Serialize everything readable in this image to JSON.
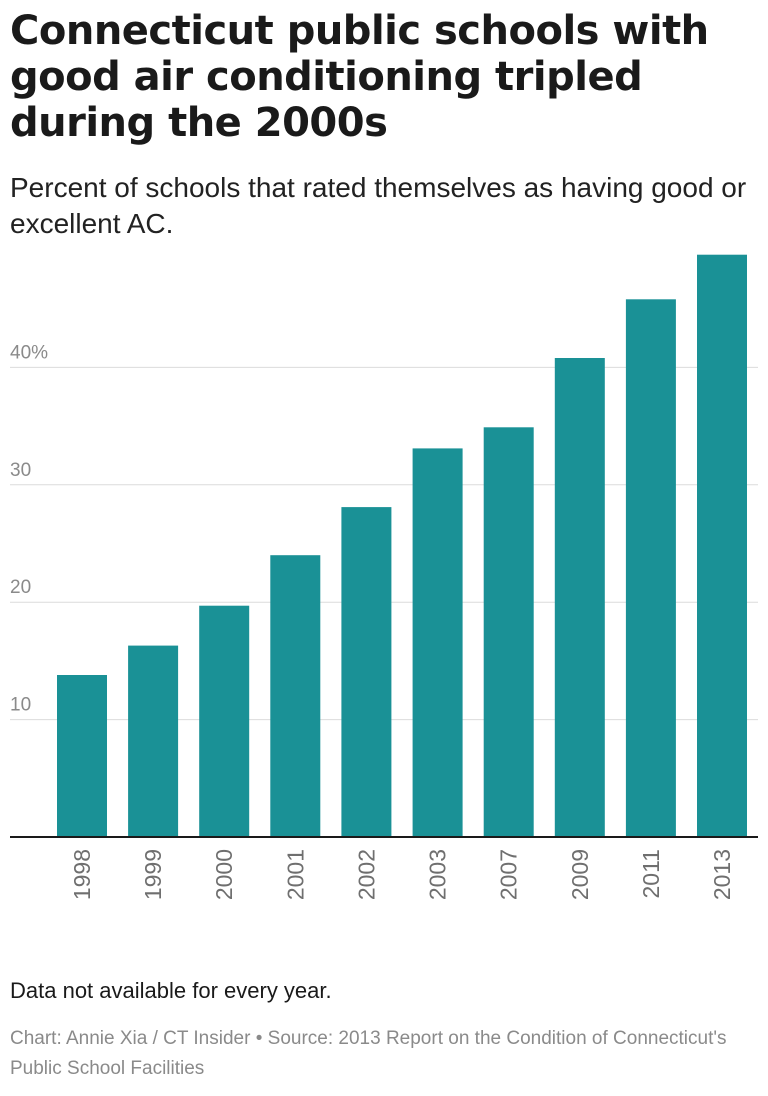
{
  "chart_data": {
    "type": "bar",
    "title": "Connecticut public schools with good air conditioning tripled during the 2000s",
    "subtitle": "Percent of schools that rated themselves as having good or excellent AC.",
    "xlabel": "",
    "ylabel": "",
    "categories": [
      "1998",
      "1999",
      "2000",
      "2001",
      "2002",
      "2003",
      "2007",
      "2009",
      "2011",
      "2013"
    ],
    "values": [
      13.8,
      16.3,
      19.7,
      24.0,
      28.1,
      33.1,
      34.9,
      40.8,
      45.8,
      49.6
    ],
    "ylim": [
      0,
      50
    ],
    "yticks": [
      10,
      20,
      30,
      40
    ],
    "ytick_labels": [
      "10",
      "20",
      "30",
      "40%"
    ],
    "grid": true,
    "bar_color": "#1a9196",
    "note": "Data not available for every year.",
    "credit": "Chart: Annie Xia / CT Insider • Source: 2013 Report on the Condition of Connecticut's Public School Facilities"
  }
}
